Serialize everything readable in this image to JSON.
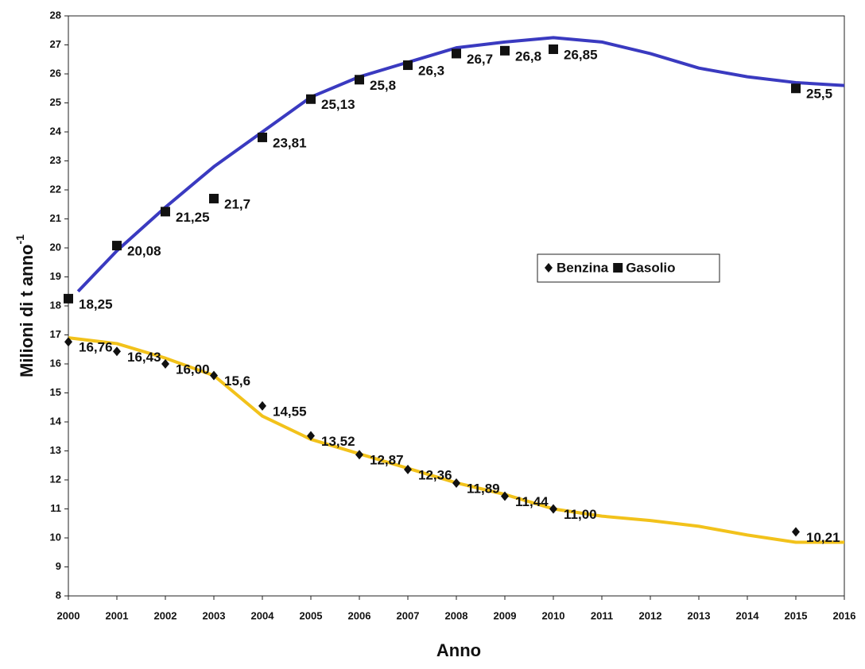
{
  "chart_data": {
    "type": "scatter",
    "xlabel": "Anno",
    "ylabel": "Milioni di t anno",
    "ylabel_sup": "-1",
    "xlim": [
      2000,
      2016
    ],
    "xticks": [
      2000,
      2001,
      2002,
      2003,
      2004,
      2005,
      2006,
      2007,
      2008,
      2009,
      2010,
      2011,
      2012,
      2013,
      2014,
      2015,
      2016
    ],
    "ylim": [
      8,
      28
    ],
    "yticks": [
      8,
      9,
      10,
      11,
      12,
      13,
      14,
      15,
      16,
      17,
      18,
      19,
      20,
      21,
      22,
      23,
      24,
      25,
      26,
      27,
      28
    ],
    "legend": "right",
    "series": [
      {
        "name": "Benzina",
        "marker": "diamond",
        "color": "#111111",
        "curve_color": "#f2c21b",
        "x": [
          2000,
          2001,
          2002,
          2003,
          2004,
          2005,
          2006,
          2007,
          2008,
          2009,
          2010,
          2015
        ],
        "values": [
          16.76,
          16.43,
          16.0,
          15.6,
          14.55,
          13.52,
          12.87,
          12.36,
          11.89,
          11.44,
          11.0,
          10.21
        ],
        "value_labels": [
          "16,76",
          "16,43",
          "16,00",
          "15,6",
          "14,55",
          "13,52",
          "12,87",
          "12,36",
          "11,89",
          "11,44",
          "11,00",
          "10,21"
        ],
        "curve_x": [
          2000,
          2001,
          2002,
          2003,
          2004,
          2005,
          2006,
          2007,
          2008,
          2009,
          2010,
          2011,
          2012,
          2013,
          2014,
          2015,
          2016
        ],
        "curve_values": [
          16.9,
          16.7,
          16.2,
          15.6,
          14.2,
          13.4,
          12.9,
          12.4,
          11.9,
          11.5,
          11.0,
          10.75,
          10.6,
          10.4,
          10.1,
          9.85,
          9.85
        ]
      },
      {
        "name": "Gasolio",
        "marker": "square",
        "color": "#111111",
        "curve_color": "#3a3ac0",
        "x": [
          2000,
          2001,
          2002,
          2003,
          2004,
          2005,
          2006,
          2007,
          2008,
          2009,
          2010,
          2015
        ],
        "values": [
          18.25,
          20.08,
          21.25,
          21.7,
          23.81,
          25.13,
          25.8,
          26.3,
          26.7,
          26.8,
          26.85,
          25.5
        ],
        "value_labels": [
          "18,25",
          "20,08",
          "21,25",
          "21,7",
          "23,81",
          "25,13",
          "25,8",
          "26,3",
          "26,7",
          "26,8",
          "26,85",
          "25,5"
        ],
        "curve_x": [
          2000.2,
          2001,
          2002,
          2003,
          2004,
          2005,
          2006,
          2007,
          2008,
          2009,
          2010,
          2011,
          2012,
          2013,
          2014,
          2015,
          2016
        ],
        "curve_values": [
          18.5,
          19.9,
          21.4,
          22.8,
          24.0,
          25.2,
          25.9,
          26.4,
          26.9,
          27.1,
          27.25,
          27.1,
          26.7,
          26.2,
          25.9,
          25.7,
          25.6
        ]
      }
    ]
  }
}
